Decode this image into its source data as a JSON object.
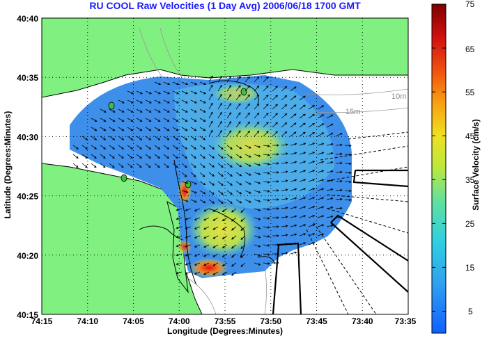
{
  "title": "RU COOL Raw Velocities (1 Day Avg) 2006/06/18 1700 GMT",
  "axes": {
    "xlabel": "Longitude (Degrees:Minutes)",
    "ylabel": "Latitude (Degrees:Minutes)",
    "x_ticks": [
      "74:15",
      "74:10",
      "74:05",
      "74:00",
      "73:55",
      "73:50",
      "73:45",
      "73:40",
      "73:35"
    ],
    "y_ticks": [
      "40:40",
      "40:35",
      "40:30",
      "40:25",
      "40:20",
      "40:15"
    ]
  },
  "colorbar": {
    "label": "Surface Velocity (cm/s)",
    "ticks": [
      "75",
      "65",
      "55",
      "45",
      "35",
      "25",
      "15",
      "5"
    ],
    "range": [
      0,
      75
    ]
  },
  "depth_labels": [
    "10m",
    "15m"
  ],
  "chart_data": {
    "type": "heatmap",
    "title": "RU COOL Raw Velocities (1 Day Avg) 2006/06/18 1700 GMT",
    "xlabel": "Longitude (Degrees:Minutes)",
    "ylabel": "Latitude (Degrees:Minutes)",
    "xlim": [
      "74:15",
      "73:35"
    ],
    "ylim": [
      "40:15",
      "40:40"
    ],
    "colorbar_range": [
      0,
      75
    ],
    "grid": true
  },
  "colors": {
    "land": "#80f080",
    "title": "#1a1aff"
  }
}
